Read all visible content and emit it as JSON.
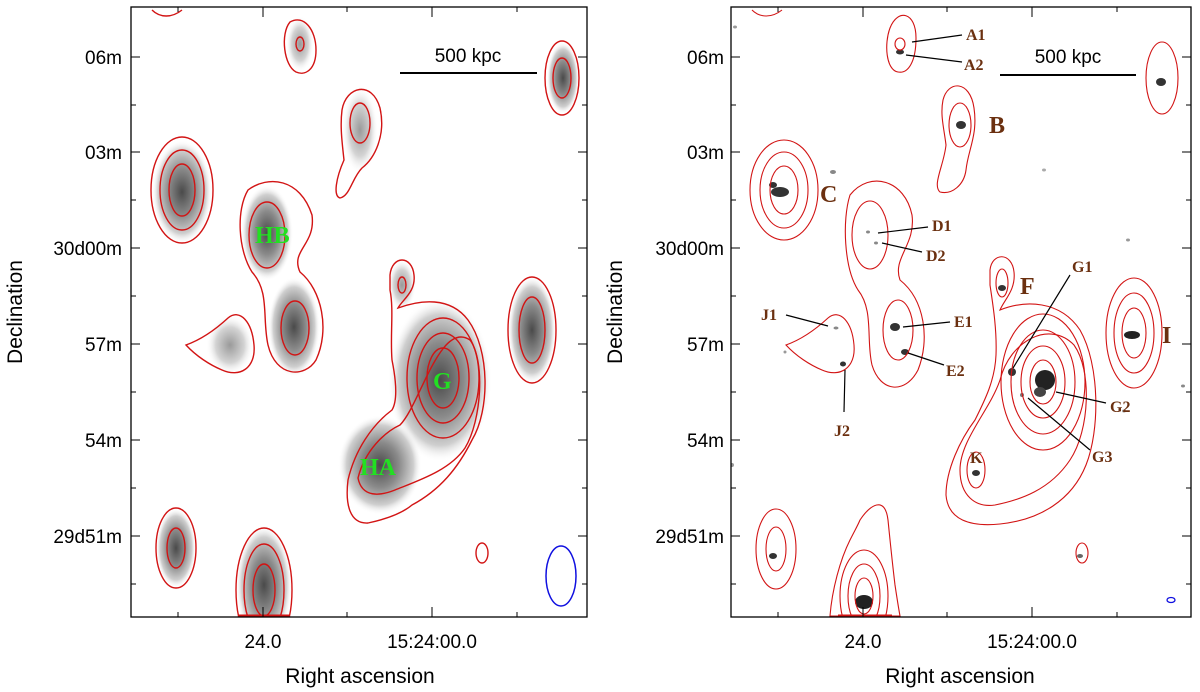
{
  "left_panel": {
    "y_ticks": [
      "06m",
      "03m",
      "30d00m",
      "57m",
      "54m",
      "29d51m"
    ],
    "x_ticks": [
      "24.0",
      "15:24:00.0"
    ],
    "x_axis_title": "Right ascension",
    "y_axis_title": "Declination",
    "scale_bar_label": "500 kpc",
    "labels": {
      "hb": "HB",
      "g": "G",
      "ha": "HA"
    }
  },
  "right_panel": {
    "y_ticks": [
      "06m",
      "03m",
      "30d00m",
      "57m",
      "54m",
      "29d51m"
    ],
    "x_ticks": [
      "24.0",
      "15:24:00.0"
    ],
    "x_axis_title": "Right ascension",
    "y_axis_title": "Declination",
    "scale_bar_label": "500 kpc",
    "labels": {
      "a1": "A1",
      "a2": "A2",
      "b": "B",
      "c": "C",
      "d1": "D1",
      "d2": "D2",
      "f": "F",
      "g1": "G1",
      "e1": "E1",
      "e2": "E2",
      "j1": "J1",
      "j2": "J2",
      "g2": "G2",
      "g3": "G3",
      "k": "K",
      "i": "I"
    }
  },
  "colors": {
    "contour": "#d21414",
    "beam": "#1010e0",
    "label_green": "#22e022",
    "label_brown": "#6b3010"
  }
}
